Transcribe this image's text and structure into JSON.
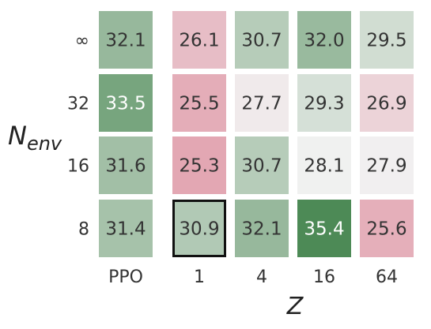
{
  "chart_data": {
    "type": "heatmap",
    "title": "",
    "xlabel": "Z",
    "ylabel": "N",
    "ylabel_subscript": "env",
    "columns": [
      "PPO",
      "1",
      "4",
      "16",
      "64"
    ],
    "rows": [
      "∞",
      "32",
      "16",
      "8"
    ],
    "values": [
      [
        32.1,
        26.1,
        30.7,
        32.0,
        29.5
      ],
      [
        33.5,
        25.5,
        27.7,
        29.3,
        26.9
      ],
      [
        31.6,
        25.3,
        30.7,
        28.1,
        27.9
      ],
      [
        31.4,
        30.9,
        32.1,
        35.4,
        25.6
      ]
    ],
    "highlighted_cell": {
      "row": "8",
      "column": "1"
    },
    "colormap": {
      "low": "#e3a7b3",
      "mid": "#f2f2f2",
      "high": "#4d8a56"
    },
    "text_colors": {
      "dark": "#333333",
      "light": "#ffffff"
    }
  }
}
